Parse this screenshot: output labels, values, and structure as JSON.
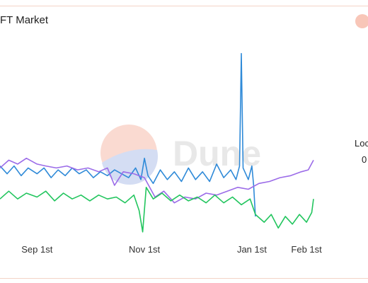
{
  "header": {
    "title": "FT Market"
  },
  "side_legend": {
    "label": "Loc",
    "value": "0"
  },
  "watermark": {
    "text": "Dune"
  },
  "chart_data": {
    "type": "line",
    "title": "FT Market",
    "xlabel": "",
    "ylabel": "",
    "x_ticks": [
      {
        "date": "2022-09-01",
        "label": "Sep 1st"
      },
      {
        "date": "2022-11-01",
        "label": "Nov 1st"
      },
      {
        "date": "2023-01-01",
        "label": "Jan 1st"
      },
      {
        "date": "2023-02-01",
        "label": "Feb 1st"
      }
    ],
    "xlim": [
      "2022-08-11",
      "2023-02-07"
    ],
    "ylim": [
      0,
      100
    ],
    "grid": false,
    "series": [
      {
        "color": "#2f8ad8",
        "points": [
          [
            "2022-08-11",
            37
          ],
          [
            "2022-08-15",
            33
          ],
          [
            "2022-08-19",
            37
          ],
          [
            "2022-08-23",
            32
          ],
          [
            "2022-08-27",
            36
          ],
          [
            "2022-09-01",
            33
          ],
          [
            "2022-09-05",
            36
          ],
          [
            "2022-09-09",
            31
          ],
          [
            "2022-09-13",
            35
          ],
          [
            "2022-09-17",
            32
          ],
          [
            "2022-09-21",
            36
          ],
          [
            "2022-09-25",
            33
          ],
          [
            "2022-09-29",
            35
          ],
          [
            "2022-10-03",
            31
          ],
          [
            "2022-10-07",
            34
          ],
          [
            "2022-10-11",
            32
          ],
          [
            "2022-10-15",
            35
          ],
          [
            "2022-10-19",
            33
          ],
          [
            "2022-10-23",
            31
          ],
          [
            "2022-10-27",
            36
          ],
          [
            "2022-10-30",
            30
          ],
          [
            "2022-11-01",
            41
          ],
          [
            "2022-11-03",
            32
          ],
          [
            "2022-11-06",
            28
          ],
          [
            "2022-11-10",
            35
          ],
          [
            "2022-11-14",
            30
          ],
          [
            "2022-11-18",
            34
          ],
          [
            "2022-11-22",
            29
          ],
          [
            "2022-11-26",
            36
          ],
          [
            "2022-11-30",
            30
          ],
          [
            "2022-12-04",
            34
          ],
          [
            "2022-12-08",
            29
          ],
          [
            "2022-12-12",
            38
          ],
          [
            "2022-12-16",
            31
          ],
          [
            "2022-12-20",
            35
          ],
          [
            "2022-12-23",
            30
          ],
          [
            "2022-12-25",
            37
          ],
          [
            "2022-12-26",
            95
          ],
          [
            "2022-12-27",
            36
          ],
          [
            "2022-12-30",
            30
          ],
          [
            "2023-01-01",
            37
          ],
          [
            "2023-01-02",
            27
          ],
          [
            "2023-01-03",
            11
          ]
        ]
      },
      {
        "color": "#9b6be8",
        "points": [
          [
            "2022-08-11",
            36
          ],
          [
            "2022-08-16",
            40
          ],
          [
            "2022-08-21",
            38
          ],
          [
            "2022-08-26",
            41
          ],
          [
            "2022-09-01",
            38
          ],
          [
            "2022-09-06",
            37
          ],
          [
            "2022-09-12",
            36
          ],
          [
            "2022-09-18",
            37
          ],
          [
            "2022-09-24",
            35
          ],
          [
            "2022-09-30",
            36
          ],
          [
            "2022-10-06",
            34
          ],
          [
            "2022-10-11",
            36
          ],
          [
            "2022-10-15",
            27
          ],
          [
            "2022-10-20",
            34
          ],
          [
            "2022-10-26",
            33
          ],
          [
            "2022-11-01",
            31
          ],
          [
            "2022-11-07",
            21
          ],
          [
            "2022-11-12",
            24
          ],
          [
            "2022-11-18",
            18
          ],
          [
            "2022-11-24",
            21
          ],
          [
            "2022-11-30",
            20
          ],
          [
            "2022-12-06",
            23
          ],
          [
            "2022-12-12",
            22
          ],
          [
            "2022-12-18",
            24
          ],
          [
            "2022-12-24",
            26
          ],
          [
            "2022-12-30",
            25
          ],
          [
            "2023-01-05",
            28
          ],
          [
            "2023-01-11",
            29
          ],
          [
            "2023-01-17",
            31
          ],
          [
            "2023-01-23",
            32
          ],
          [
            "2023-01-29",
            34
          ],
          [
            "2023-02-02",
            35
          ],
          [
            "2023-02-05",
            40
          ]
        ]
      },
      {
        "color": "#22c55e",
        "points": [
          [
            "2022-08-11",
            20
          ],
          [
            "2022-08-16",
            24
          ],
          [
            "2022-08-21",
            20
          ],
          [
            "2022-08-26",
            23
          ],
          [
            "2022-09-01",
            21
          ],
          [
            "2022-09-06",
            24
          ],
          [
            "2022-09-11",
            19
          ],
          [
            "2022-09-16",
            23
          ],
          [
            "2022-09-21",
            20
          ],
          [
            "2022-09-26",
            22
          ],
          [
            "2022-10-01",
            19
          ],
          [
            "2022-10-06",
            22
          ],
          [
            "2022-10-11",
            20
          ],
          [
            "2022-10-16",
            21
          ],
          [
            "2022-10-21",
            18
          ],
          [
            "2022-10-26",
            22
          ],
          [
            "2022-10-29",
            14
          ],
          [
            "2022-10-31",
            3
          ],
          [
            "2022-11-02",
            26
          ],
          [
            "2022-11-06",
            20
          ],
          [
            "2022-11-11",
            23
          ],
          [
            "2022-11-16",
            19
          ],
          [
            "2022-11-21",
            22
          ],
          [
            "2022-11-26",
            19
          ],
          [
            "2022-12-01",
            21
          ],
          [
            "2022-12-06",
            18
          ],
          [
            "2022-12-11",
            22
          ],
          [
            "2022-12-16",
            18
          ],
          [
            "2022-12-21",
            21
          ],
          [
            "2022-12-26",
            17
          ],
          [
            "2022-12-31",
            20
          ],
          [
            "2023-01-03",
            12
          ],
          [
            "2023-01-08",
            8
          ],
          [
            "2023-01-12",
            12
          ],
          [
            "2023-01-16",
            5
          ],
          [
            "2023-01-20",
            11
          ],
          [
            "2023-01-24",
            7
          ],
          [
            "2023-01-28",
            12
          ],
          [
            "2023-02-01",
            8
          ],
          [
            "2023-02-04",
            13
          ],
          [
            "2023-02-05",
            20
          ]
        ]
      }
    ]
  }
}
